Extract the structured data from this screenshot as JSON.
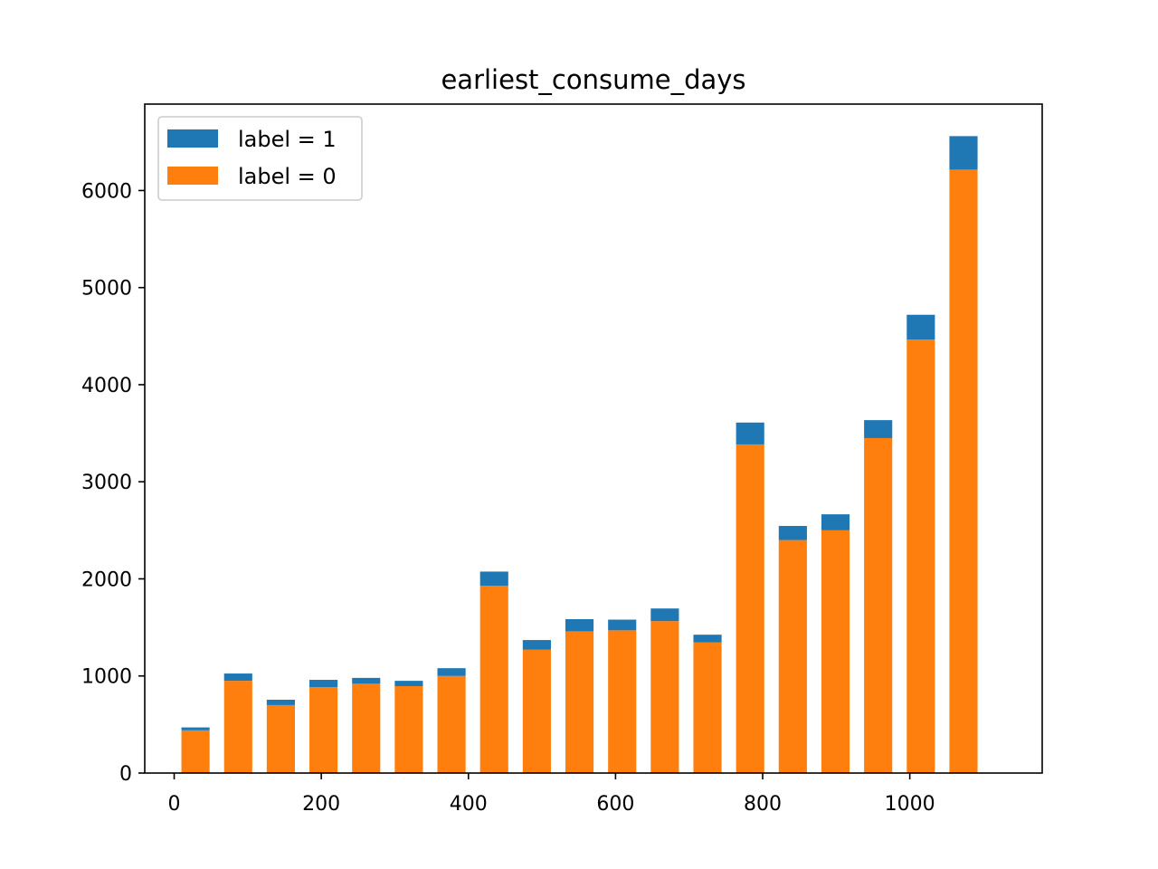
{
  "chart_data": {
    "type": "bar",
    "stacked": true,
    "title": "earliest_consume_days",
    "xlabel": "",
    "ylabel": "",
    "bin_width": 58,
    "x": [
      29,
      87,
      145,
      203,
      261,
      319,
      377,
      435,
      493,
      551,
      609,
      667,
      725,
      783,
      841,
      899,
      957,
      1015,
      1073
    ],
    "series": [
      {
        "name": "label = 0",
        "color": "#ff7f0e",
        "values": [
          440,
          950,
          700,
          885,
          920,
          895,
          1000,
          1930,
          1270,
          1460,
          1470,
          1565,
          1345,
          3385,
          2400,
          2500,
          3450,
          4465,
          6215
        ]
      },
      {
        "name": "label = 1",
        "color": "#1f77b4",
        "values": [
          30,
          75,
          55,
          75,
          60,
          55,
          80,
          145,
          100,
          125,
          110,
          130,
          80,
          225,
          145,
          165,
          185,
          255,
          345
        ]
      }
    ],
    "xlim": [
      -40,
      1180
    ],
    "ylim": [
      0,
      6890
    ],
    "xticks": [
      0,
      200,
      400,
      600,
      800,
      1000
    ],
    "yticks": [
      0,
      1000,
      2000,
      3000,
      4000,
      5000,
      6000
    ],
    "legend": {
      "placement": "top-left",
      "order": [
        "label = 1",
        "label = 0"
      ]
    },
    "grid": false
  }
}
